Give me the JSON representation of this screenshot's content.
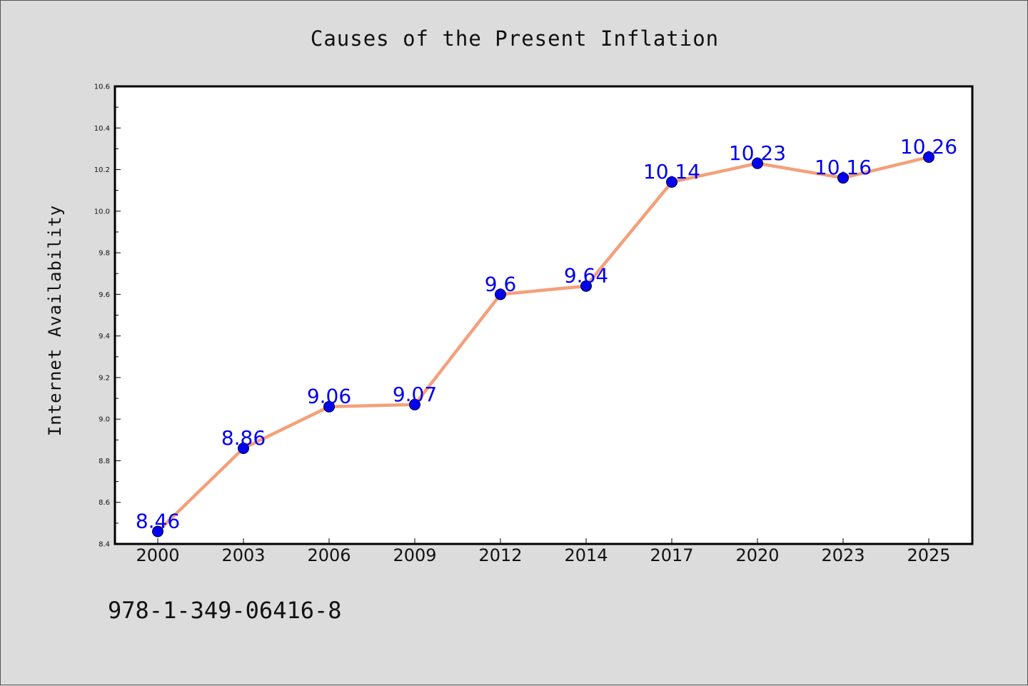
{
  "chart_data": {
    "type": "line",
    "title": "Causes of the Present Inflation",
    "xlabel": "",
    "ylabel": "Internet Availability",
    "categories": [
      "2000",
      "2003",
      "2006",
      "2009",
      "2012",
      "2014",
      "2017",
      "2020",
      "2023",
      "2025"
    ],
    "series": [
      {
        "values": [
          8.46,
          8.86,
          9.06,
          9.07,
          9.6,
          9.64,
          10.14,
          10.23,
          10.16,
          10.26
        ],
        "labels": [
          "8.46",
          "8.86",
          "9.06",
          "9.07",
          "9.6",
          "9.64",
          "10.14",
          "10.23",
          "10.16",
          "10.26"
        ],
        "line_color": "#f4a07a",
        "marker_color": "#0000ee",
        "label_color": "#0000ee"
      }
    ],
    "ylim": [
      8.4,
      10.6
    ],
    "yticks": [
      "8.4",
      "8.6",
      "8.8",
      "9.0",
      "9.2",
      "9.4",
      "9.6",
      "9.8",
      "10.0",
      "10.2",
      "10.4",
      "10.6"
    ],
    "grid": false,
    "legend": "none"
  },
  "footnote": "978-1-349-06416-8",
  "colors": {
    "background": "#dcdcdc",
    "plot_background": "#ffffff",
    "axis": "#000000"
  }
}
